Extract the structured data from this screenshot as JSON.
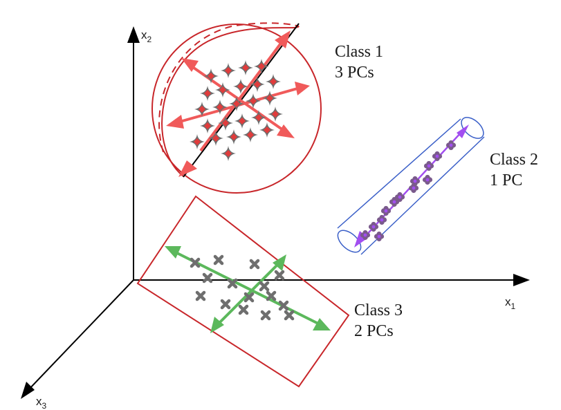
{
  "axes": {
    "x1": {
      "letter": "x",
      "sub": "1"
    },
    "x2": {
      "letter": "x",
      "sub": "2"
    },
    "x3": {
      "letter": "x",
      "sub": "3"
    }
  },
  "classes": [
    {
      "name": "Class 1",
      "pcs": "3 PCs",
      "color": "#e03c3c",
      "marker": "star-diamond"
    },
    {
      "name": "Class 2",
      "pcs": "1 PC",
      "color": "#a24ef0",
      "marker": "clover"
    },
    {
      "name": "Class 3",
      "pcs": "2 PCs",
      "color": "#5cb85c",
      "marker": "cross"
    }
  ],
  "colors": {
    "axis": "#000000",
    "sphere": "#c8262a",
    "cylinder": "#3a5fc8",
    "rectangle": "#c8262a",
    "point": "#6e6e6e"
  }
}
